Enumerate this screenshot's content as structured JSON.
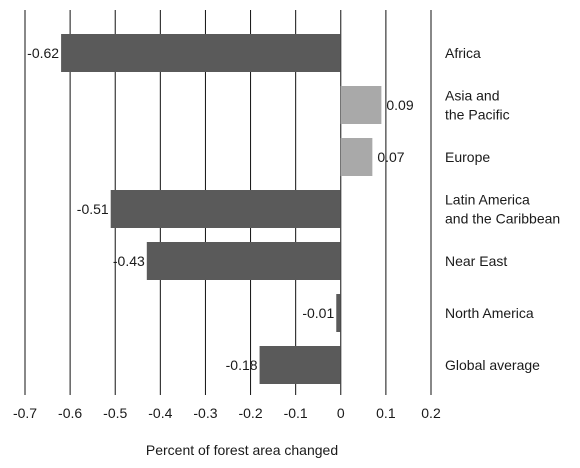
{
  "chart_data": {
    "type": "bar",
    "orientation": "horizontal",
    "categories": [
      [
        "Africa"
      ],
      [
        "Asia and",
        "the Pacific"
      ],
      [
        "Europe"
      ],
      [
        "Latin America",
        "and the Caribbean"
      ],
      [
        "Near East"
      ],
      [
        "North America"
      ],
      [
        "Global average"
      ]
    ],
    "values": [
      -0.62,
      0.09,
      0.07,
      -0.51,
      -0.43,
      -0.01,
      -0.18
    ],
    "value_labels": [
      "-0.62",
      "0.09",
      "0.07",
      "-0.51",
      "-0.43",
      "-0.01",
      "-0.18"
    ],
    "xlabel": "Percent of forest area changed",
    "xlim": [
      -0.7,
      0.2
    ],
    "xticks": [
      -0.7,
      -0.6,
      -0.5,
      -0.4,
      -0.3,
      -0.2,
      -0.1,
      0,
      0.1,
      0.2
    ],
    "xtick_labels": [
      "-0.7",
      "-0.6",
      "-0.5",
      "-0.4",
      "-0.3",
      "-0.2",
      "-0.1",
      "0",
      "0.1",
      "0.2"
    ],
    "grid": "vertical",
    "colors": {
      "negative": "#5a5a5a",
      "positive": "#a9a9a9",
      "grid": "#111111"
    }
  }
}
